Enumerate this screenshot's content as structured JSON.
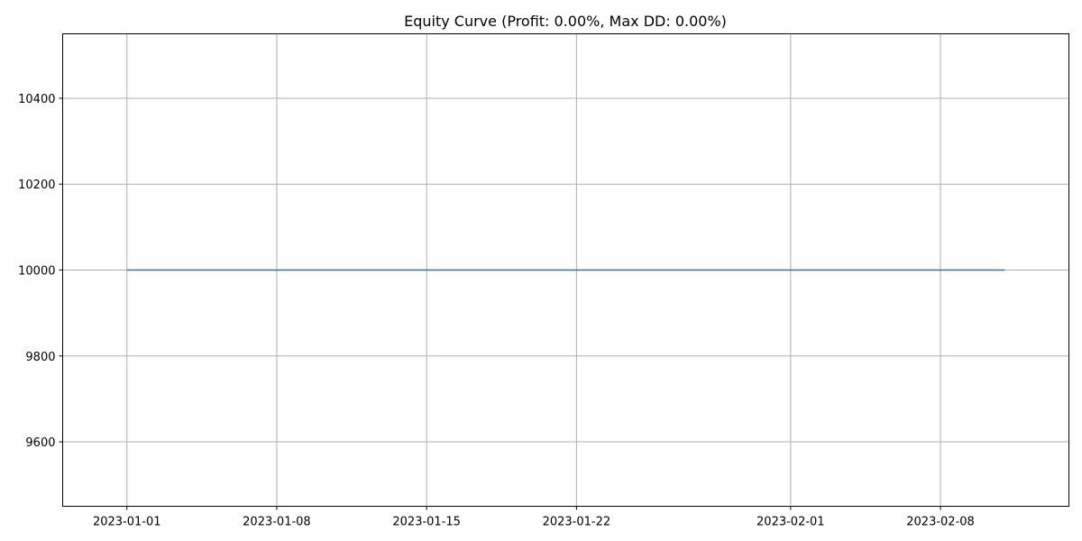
{
  "colors": {
    "line": "#1f77b4",
    "grid": "#b0b0b0",
    "axis": "#000000",
    "background": "#ffffff"
  },
  "chart_data": {
    "type": "line",
    "title": "Equity Curve (Profit: 0.00%, Max DD: 0.00%)",
    "xlabel": "",
    "ylabel": "",
    "grid": true,
    "legend": "none",
    "x_type": "date",
    "xlim": [
      "2022-12-29",
      "2023-02-14"
    ],
    "ylim": [
      9450,
      10550
    ],
    "x_ticks": [
      "2023-01-01",
      "2023-01-08",
      "2023-01-15",
      "2023-01-22",
      "2023-02-01",
      "2023-02-08"
    ],
    "x_tick_labels": [
      "2023-01-01",
      "2023-01-08",
      "2023-01-15",
      "2023-01-22",
      "2023-02-01",
      "2023-02-08"
    ],
    "y_ticks": [
      9600,
      9800,
      10000,
      10200,
      10400
    ],
    "y_tick_labels": [
      "9600",
      "9800",
      "10000",
      "10200",
      "10400"
    ],
    "series": [
      {
        "x": [
          "2023-01-01",
          "2023-02-11"
        ],
        "y": [
          10000,
          10000
        ]
      }
    ]
  }
}
